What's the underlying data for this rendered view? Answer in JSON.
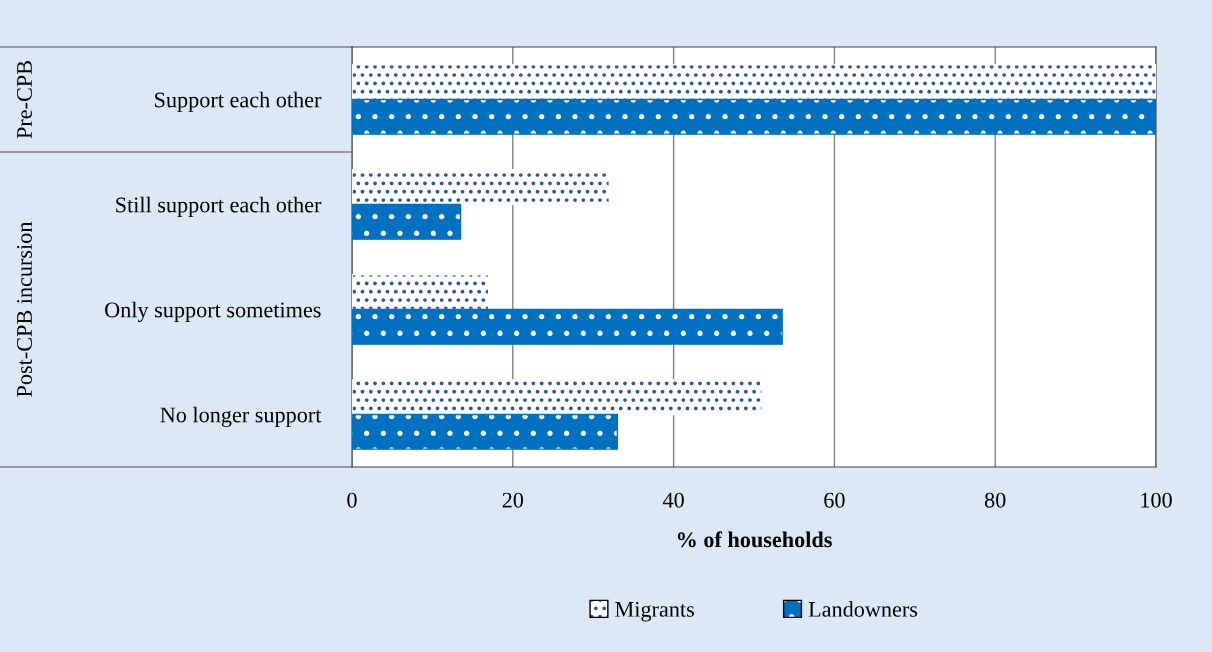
{
  "chart_data": {
    "type": "bar",
    "orientation": "horizontal",
    "xlabel": "% of households",
    "categories": [
      "Support each other",
      "Still support each other",
      "Only support sometimes",
      "No longer support"
    ],
    "series": [
      {
        "name": "Migrants",
        "color": "#ffffff",
        "values": [
          100,
          32,
          17,
          51
        ]
      },
      {
        "name": "Landowners",
        "color": "#0070c0",
        "values": [
          100,
          13.5,
          53.5,
          33
        ]
      }
    ],
    "xlim": [
      0,
      100
    ],
    "xticks": [
      0,
      20,
      40,
      60,
      80,
      100
    ],
    "grid": "x",
    "legend": "bottom",
    "annotations": [
      "Pre-CPB",
      "Post-CPB incursion"
    ]
  }
}
